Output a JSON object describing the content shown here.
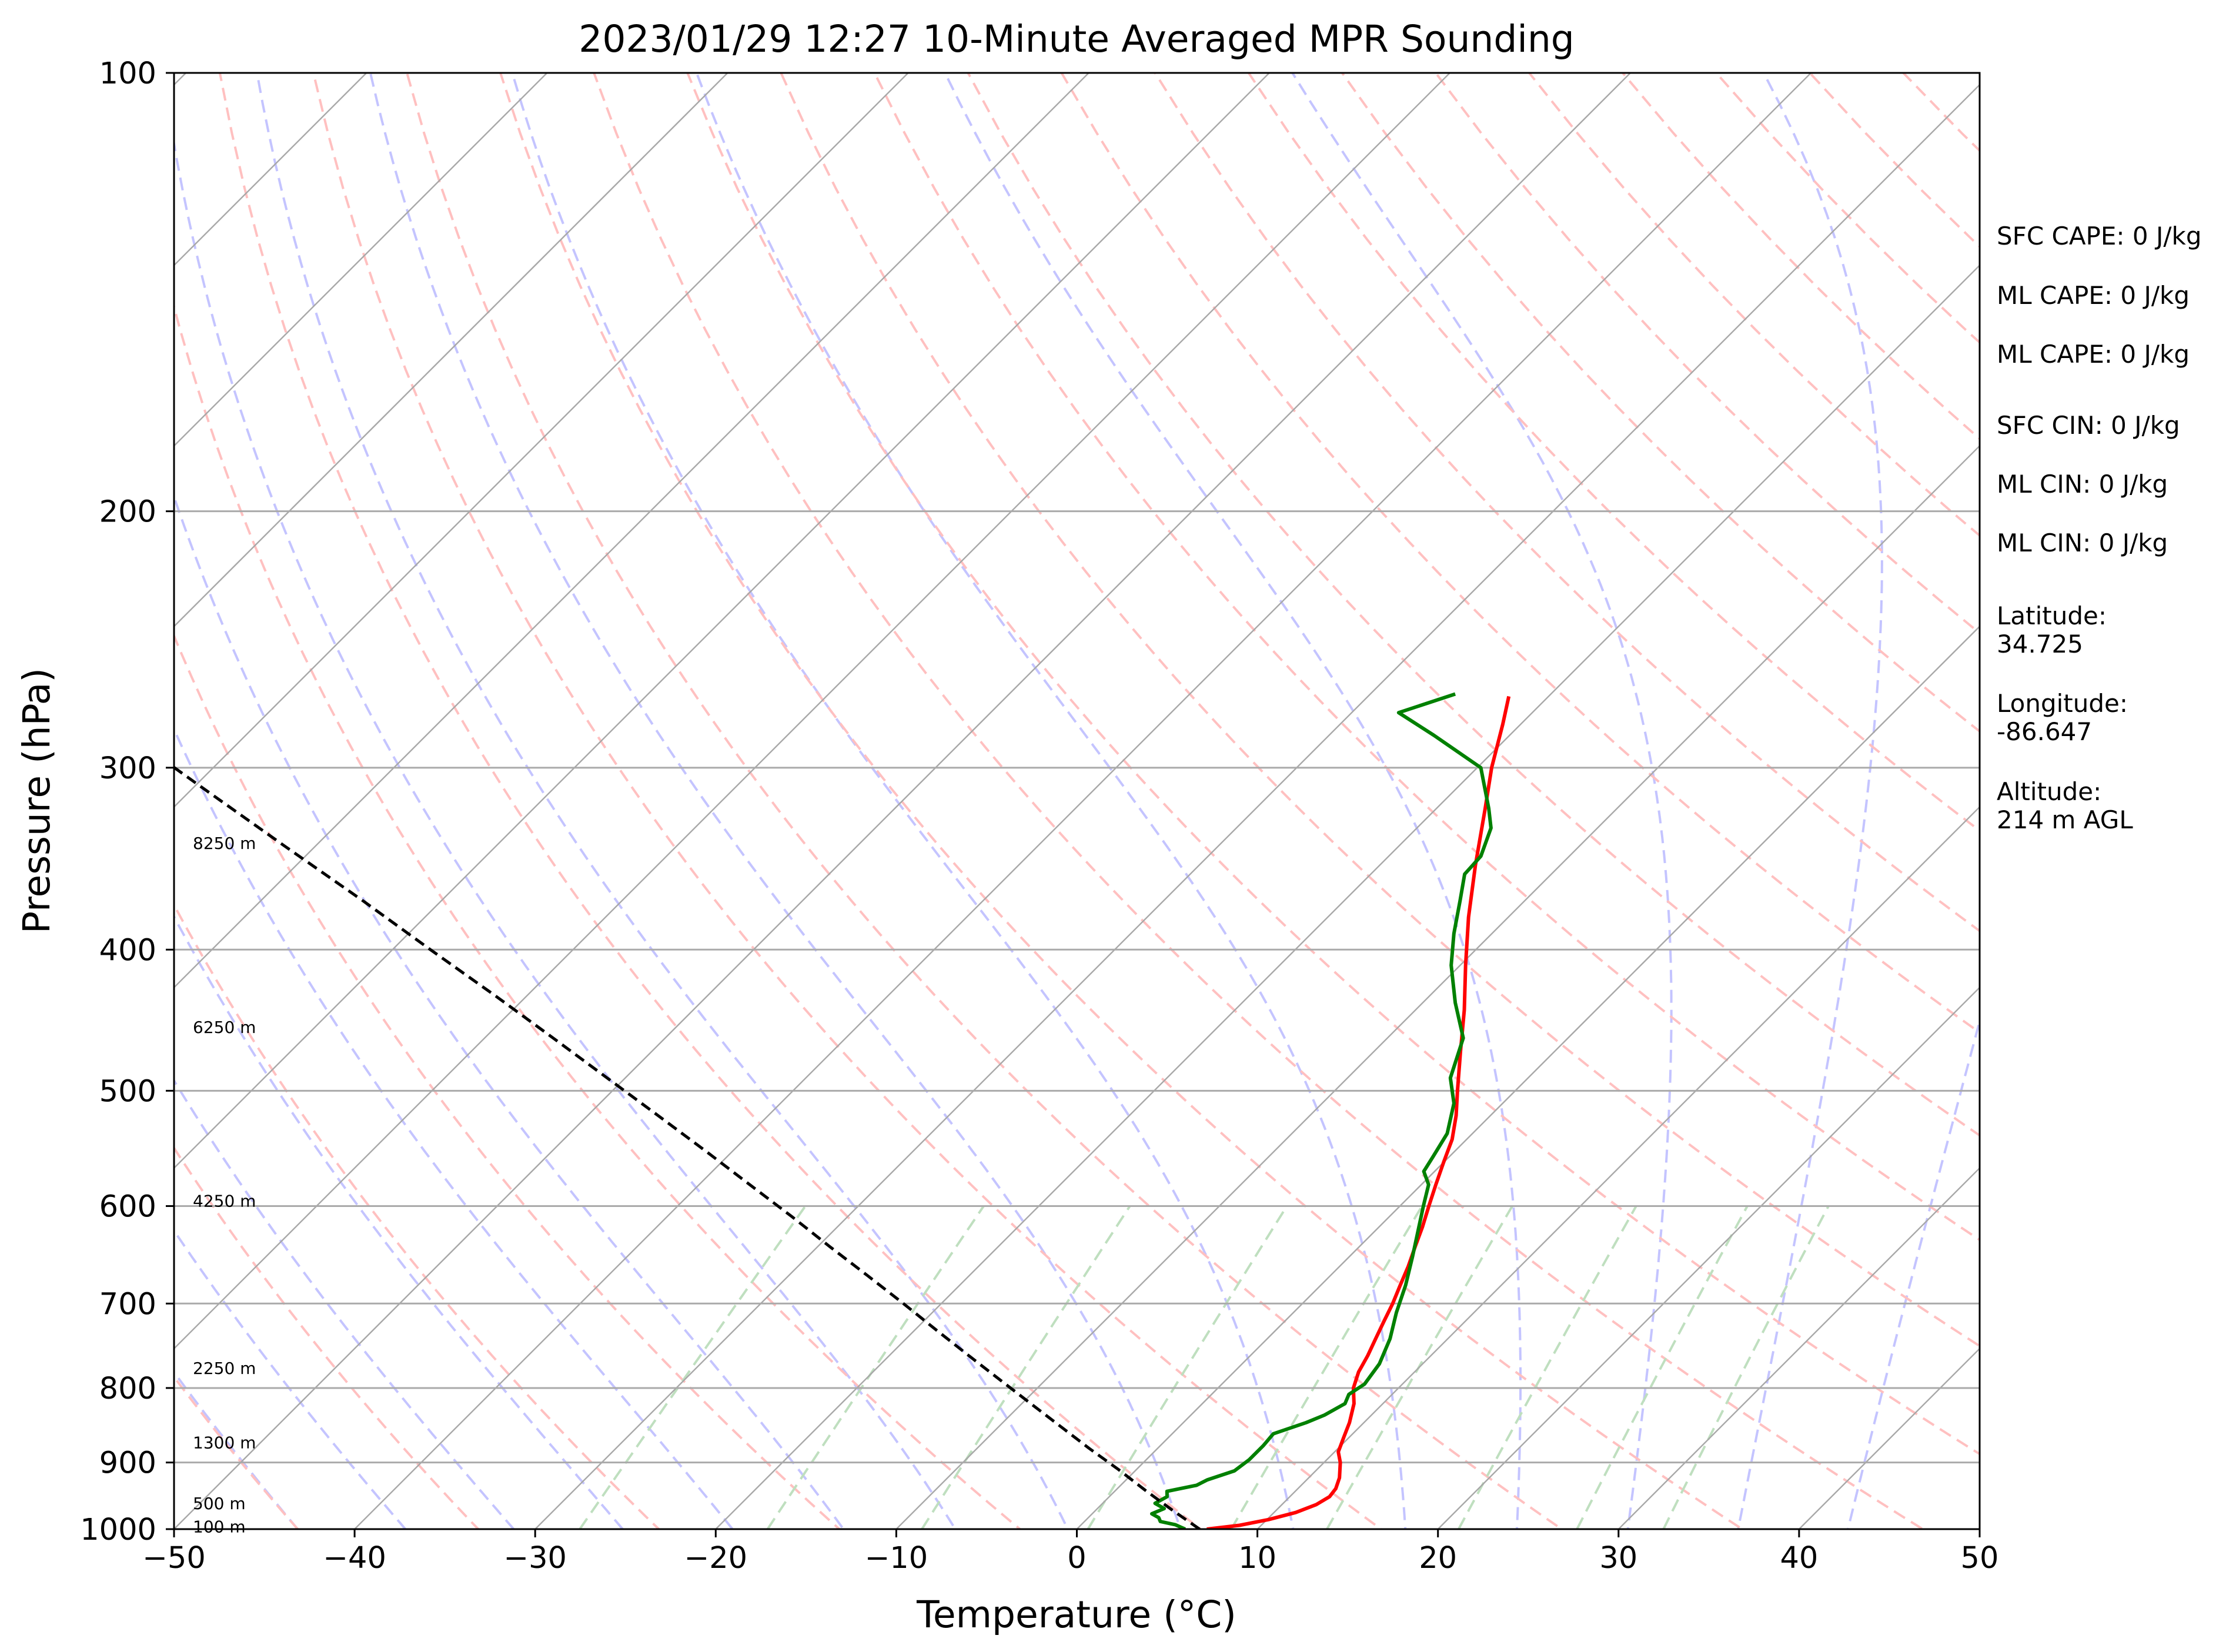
{
  "chart_data": {
    "type": "skew-t",
    "title": "2023/01/29 12:27 10-Minute Averaged MPR Sounding",
    "xlabel": "Temperature (°C)",
    "ylabel": "Pressure (hPa)",
    "xlim": [
      -50,
      50
    ],
    "ylim": [
      1000,
      100
    ],
    "y_scale": "log",
    "skew": "45 degrees",
    "x_ticks": [
      "−50",
      "−40",
      "−30",
      "−20",
      "−10",
      "0",
      "10",
      "20",
      "30",
      "40",
      "50"
    ],
    "x_tick_values": [
      -50,
      -40,
      -30,
      -20,
      -10,
      0,
      10,
      20,
      30,
      40,
      50
    ],
    "y_ticks": [
      "1000",
      "900",
      "800",
      "700",
      "600",
      "500",
      "400",
      "300",
      "200",
      "100"
    ],
    "y_tick_values": [
      1000,
      900,
      800,
      700,
      600,
      500,
      400,
      300,
      200,
      100
    ],
    "grid": true,
    "colors": {
      "temperature": "#ff0000",
      "dewpoint": "#008000",
      "parcel": "#000000",
      "isotherm": "#a8a8a8",
      "dry_adiabat": "#ffc0c0",
      "moist_adiabat": "#c4c4ff",
      "mixing_ratio": "#bfdfbf",
      "grid": "#aaaaaa"
    },
    "height_labels": [
      {
        "text": "8250 m",
        "p": 338
      },
      {
        "text": "6250 m",
        "p": 452
      },
      {
        "text": "4250 m",
        "p": 595
      },
      {
        "text": "2250 m",
        "p": 775
      },
      {
        "text": "1300 m",
        "p": 872
      },
      {
        "text": "500 m",
        "p": 960
      },
      {
        "text": "100 m",
        "p": 996
      }
    ],
    "series": [
      {
        "key": "temperature",
        "p": [
          1000,
          994,
          985,
          974,
          962,
          950,
          938,
          922,
          900,
          885,
          865,
          845,
          820,
          800,
          780,
          760,
          740,
          720,
          700,
          680,
          660,
          640,
          620,
          600,
          580,
          560,
          540,
          520,
          500,
          470,
          440,
          410,
          380,
          350,
          320,
          300,
          280,
          268
        ],
        "t": [
          7.2,
          8.8,
          10.1,
          11.2,
          11.9,
          12.2,
          12.1,
          11.7,
          10.9,
          10.2,
          9.7,
          9.2,
          8.4,
          7.5,
          6.9,
          6.5,
          6.0,
          5.5,
          5.0,
          4.4,
          3.8,
          3.1,
          2.4,
          1.6,
          0.8,
          0.0,
          -0.8,
          -1.9,
          -3.2,
          -5.2,
          -7.3,
          -9.7,
          -12.2,
          -14.7,
          -17.3,
          -19.2,
          -21.0,
          -22.2
        ]
      },
      {
        "key": "dewpoint",
        "p": [
          1000,
          993,
          988,
          982,
          976,
          968,
          960,
          950,
          942,
          933,
          925,
          912,
          896,
          876,
          860,
          845,
          835,
          820,
          808,
          795,
          770,
          740,
          710,
          680,
          650,
          620,
          600,
          580,
          568,
          555,
          535,
          510,
          490,
          460,
          435,
          410,
          390,
          370,
          355,
          345,
          330,
          320,
          300,
          285,
          275,
          267
        ],
        "t": [
          6.0,
          5.2,
          4.2,
          3.9,
          3.3,
          3.7,
          2.9,
          3.2,
          2.9,
          4.2,
          4.5,
          5.5,
          5.7,
          5.7,
          5.6,
          6.8,
          7.4,
          7.9,
          7.6,
          7.9,
          7.6,
          6.8,
          5.7,
          4.7,
          3.5,
          2.2,
          1.3,
          0.4,
          -0.6,
          -0.9,
          -1.4,
          -2.7,
          -4.3,
          -5.8,
          -8.2,
          -10.5,
          -12.1,
          -13.6,
          -14.8,
          -14.9,
          -15.9,
          -17.1,
          -19.8,
          -24.2,
          -27.4,
          -25.3
        ]
      },
      {
        "key": "parcel",
        "p": [
          1000,
          970,
          940,
          910,
          880,
          850,
          820,
          790,
          760,
          730,
          700,
          670,
          640,
          610,
          580,
          550,
          520,
          490,
          460,
          430,
          400,
          370,
          340,
          310,
          290,
          268
        ],
        "t": [
          6.8,
          4.2,
          1.6,
          -1.0,
          -3.8,
          -6.6,
          -9.5,
          -12.5,
          -15.6,
          -18.8,
          -22.1,
          -25.6,
          -29.3,
          -33.1,
          -37.2,
          -41.5,
          -46.1,
          -51.0,
          -56.2,
          -61.8,
          -67.9,
          -74.4,
          -81.6,
          -89.4,
          -95.0,
          -100.7
        ]
      }
    ]
  },
  "info": {
    "sfc_cape": "SFC CAPE: 0 J/kg",
    "ml_cape_1": "ML CAPE: 0 J/kg",
    "ml_cape_2": "ML CAPE: 0 J/kg",
    "sfc_cin": "SFC CIN: 0 J/kg",
    "ml_cin_1": "ML CIN: 0 J/kg",
    "ml_cin_2": "ML CIN: 0 J/kg",
    "latitude_label": "Latitude:",
    "latitude_value": "34.725",
    "longitude_label": "Longitude:",
    "longitude_value": "-86.647",
    "altitude_label": "Altitude:",
    "altitude_value": "214 m AGL"
  }
}
